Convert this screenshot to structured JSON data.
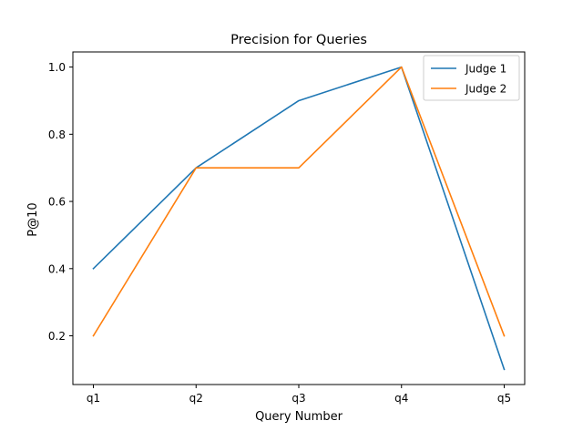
{
  "chart_data": {
    "type": "line",
    "title": "Precision for Queries",
    "xlabel": "Query Number",
    "ylabel": "P@10",
    "categories": [
      "q1",
      "q2",
      "q3",
      "q4",
      "q5"
    ],
    "yticks": [
      "0.2",
      "0.4",
      "0.6",
      "0.8",
      "1.0"
    ],
    "ylim": [
      0.055,
      1.045
    ],
    "grid": false,
    "legend_position": "top-right",
    "series": [
      {
        "name": "Judge 1",
        "color": "#1f77b4",
        "values": [
          0.4,
          0.7,
          0.9,
          1.0,
          0.1
        ]
      },
      {
        "name": "Judge 2",
        "color": "#ff7f0e",
        "values": [
          0.2,
          0.7,
          0.7,
          1.0,
          0.2
        ]
      }
    ]
  }
}
